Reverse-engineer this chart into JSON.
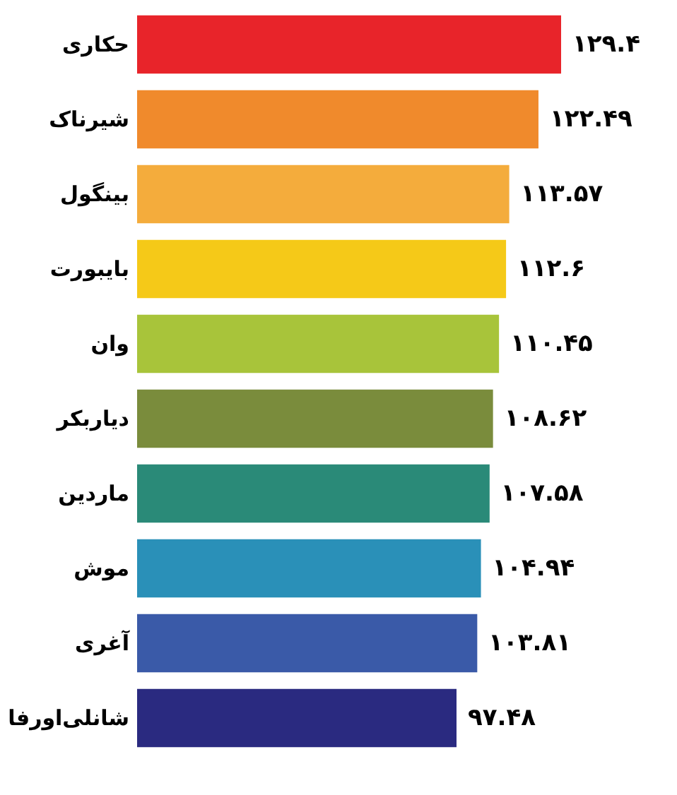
{
  "chart_data": {
    "type": "bar",
    "orientation": "horizontal",
    "categories": [
      "حکاری",
      "شیرناک",
      "بینگول",
      "بایبورت",
      "وان",
      "دیاربکر",
      "ماردین",
      "موش",
      "آغری",
      "شانلی‌اورفا"
    ],
    "values": [
      129.4,
      122.49,
      113.57,
      112.6,
      110.45,
      108.62,
      107.58,
      104.94,
      103.81,
      97.48
    ],
    "colors": [
      "#e8242a",
      "#f08a2c",
      "#f4ac3c",
      "#f5c918",
      "#a8c43a",
      "#7a8c3c",
      "#2a8a78",
      "#2a90b8",
      "#3a5aa8",
      "#2a2a80"
    ],
    "data_labels": true,
    "value_labels": [
      "۱۲۹.۴",
      "۱۲۲.۴۹",
      "۱۱۳.۵۷",
      "۱۱۲.۶",
      "۱۱۰.۴۵",
      "۱۰۸.۶۲",
      "۱۰۷.۵۸",
      "۱۰۴.۹۴",
      "۱۰۳.۸۱",
      "۹۷.۴۸"
    ]
  }
}
